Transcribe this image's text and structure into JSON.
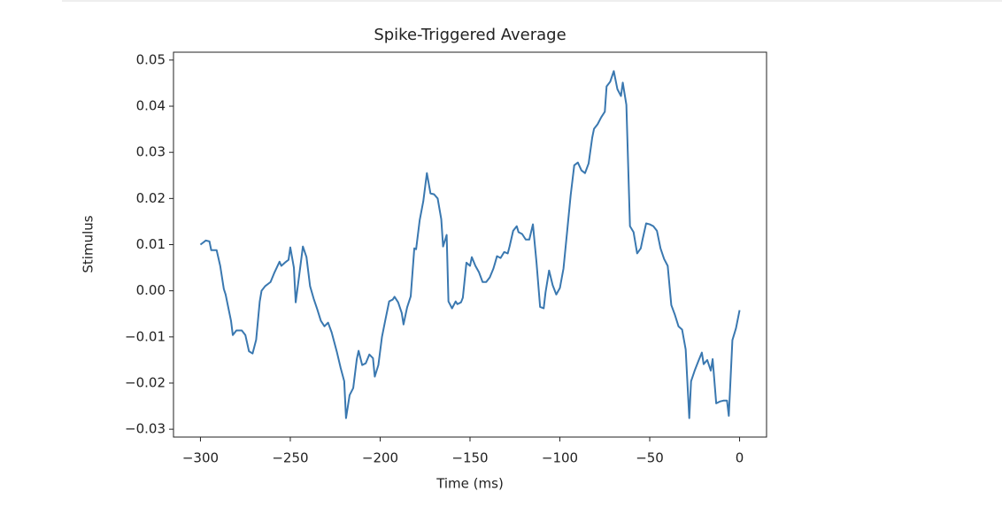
{
  "chart_data": {
    "type": "line",
    "title": "Spike-Triggered Average",
    "xlabel": "Time (ms)",
    "ylabel": "Stimulus",
    "color": "#3a78b0",
    "x": [
      -300,
      -297,
      -295,
      -294,
      -291,
      -289,
      -287,
      -286,
      -283,
      -282,
      -280,
      -277,
      -275,
      -273,
      -271,
      -269,
      -267,
      -266,
      -264,
      -261,
      -259,
      -256,
      -255,
      -253,
      -251,
      -250,
      -248,
      -247,
      -245,
      -243,
      -241,
      -239,
      -237,
      -235,
      -233,
      -231,
      -229,
      -227,
      -224,
      -222,
      -220,
      -219,
      -217,
      -215,
      -213,
      -212,
      -210,
      -208,
      -206,
      -204,
      -203,
      -201,
      -199,
      -197,
      -195,
      -193,
      -192,
      -190,
      -188,
      -187,
      -185,
      -183,
      -181,
      -180,
      -178,
      -176,
      -174,
      -172,
      -170,
      -168,
      -166,
      -165,
      -163,
      -162,
      -160,
      -158,
      -157,
      -155,
      -154,
      -152,
      -150,
      -149,
      -147,
      -145,
      -143,
      -141,
      -139,
      -137,
      -136,
      -135,
      -133,
      -131,
      -129,
      -128,
      -126,
      -124,
      -123,
      -121,
      -119,
      -117,
      -115,
      -113,
      -111,
      -109,
      -108,
      -106,
      -104,
      -102,
      -100,
      -98,
      -96,
      -94,
      -92,
      -90,
      -88,
      -86,
      -84,
      -82,
      -81,
      -79,
      -77,
      -75,
      -74,
      -72,
      -70,
      -68,
      -66,
      -65,
      -63,
      -61,
      -59,
      -57,
      -55,
      -54,
      -52,
      -50,
      -48,
      -46,
      -44,
      -42,
      -40,
      -38,
      -36,
      -34,
      -32,
      -30,
      -28,
      -27,
      -25,
      -23,
      -21,
      -20,
      -18,
      -16,
      -15,
      -13,
      -11,
      -9,
      -7,
      -6,
      -4,
      -2,
      0
    ],
    "values": [
      0.01,
      0.0109,
      0.0107,
      0.0088,
      0.0088,
      0.0054,
      0.0004,
      -0.0008,
      -0.0065,
      -0.0096,
      -0.0086,
      -0.0086,
      -0.0096,
      -0.0131,
      -0.0136,
      -0.0106,
      -0.0023,
      0.0,
      0.001,
      0.0019,
      0.0038,
      0.0063,
      0.0054,
      0.0061,
      0.0067,
      0.0094,
      0.005,
      -0.0025,
      0.0035,
      0.0096,
      0.0073,
      0.001,
      -0.0017,
      -0.004,
      -0.0065,
      -0.0077,
      -0.0069,
      -0.009,
      -0.0134,
      -0.0167,
      -0.0196,
      -0.0276,
      -0.0226,
      -0.0211,
      -0.0148,
      -0.013,
      -0.0161,
      -0.0157,
      -0.0138,
      -0.0146,
      -0.0186,
      -0.0161,
      -0.01,
      -0.0061,
      -0.0023,
      -0.0019,
      -0.0013,
      -0.0025,
      -0.0048,
      -0.0073,
      -0.0036,
      -0.0012,
      0.0092,
      0.009,
      0.0153,
      0.0194,
      0.0255,
      0.0211,
      0.0209,
      0.02,
      0.0155,
      0.0096,
      0.0121,
      -0.0023,
      -0.0038,
      -0.0023,
      -0.0029,
      -0.0025,
      -0.0015,
      0.0061,
      0.0054,
      0.0073,
      0.0054,
      0.004,
      0.0019,
      0.0019,
      0.0029,
      0.0048,
      0.0061,
      0.0075,
      0.0071,
      0.0084,
      0.0081,
      0.0096,
      0.013,
      0.014,
      0.0127,
      0.0123,
      0.0111,
      0.0111,
      0.0144,
      0.0061,
      -0.0035,
      -0.0038,
      -0.0004,
      0.0044,
      0.0012,
      -0.0008,
      0.0006,
      0.0048,
      0.0127,
      0.0207,
      0.0272,
      0.0278,
      0.0261,
      0.0255,
      0.0276,
      0.0332,
      0.0351,
      0.0361,
      0.0376,
      0.0388,
      0.0443,
      0.0453,
      0.0476,
      0.0437,
      0.0422,
      0.0451,
      0.0403,
      0.014,
      0.0127,
      0.0081,
      0.0092,
      0.0111,
      0.0146,
      0.0144,
      0.014,
      0.013,
      0.0092,
      0.0069,
      0.0054,
      -0.0031,
      -0.0052,
      -0.0077,
      -0.0084,
      -0.0127,
      -0.0276,
      -0.0196,
      -0.0173,
      -0.0153,
      -0.0134,
      -0.0159,
      -0.015,
      -0.0173,
      -0.0148,
      -0.0244,
      -0.024,
      -0.0238,
      -0.0238,
      -0.0271,
      -0.0107,
      -0.0081,
      -0.0042
    ],
    "xlim": [
      -315,
      15
    ],
    "ylim": [
      -0.0317,
      0.0517
    ],
    "xticks": [
      {
        "value": -300,
        "label": "−300"
      },
      {
        "value": -250,
        "label": "−250"
      },
      {
        "value": -200,
        "label": "−200"
      },
      {
        "value": -150,
        "label": "−150"
      },
      {
        "value": -100,
        "label": "−100"
      },
      {
        "value": -50,
        "label": "−50"
      },
      0
    ],
    "yticks": [
      {
        "value": -0.03,
        "label": "−0.03"
      },
      {
        "value": -0.02,
        "label": "−0.02"
      },
      {
        "value": -0.01,
        "label": "−0.01"
      },
      {
        "value": 0,
        "label": "0.00"
      },
      0.01,
      0.02,
      0.03,
      0.04,
      0.05
    ]
  }
}
